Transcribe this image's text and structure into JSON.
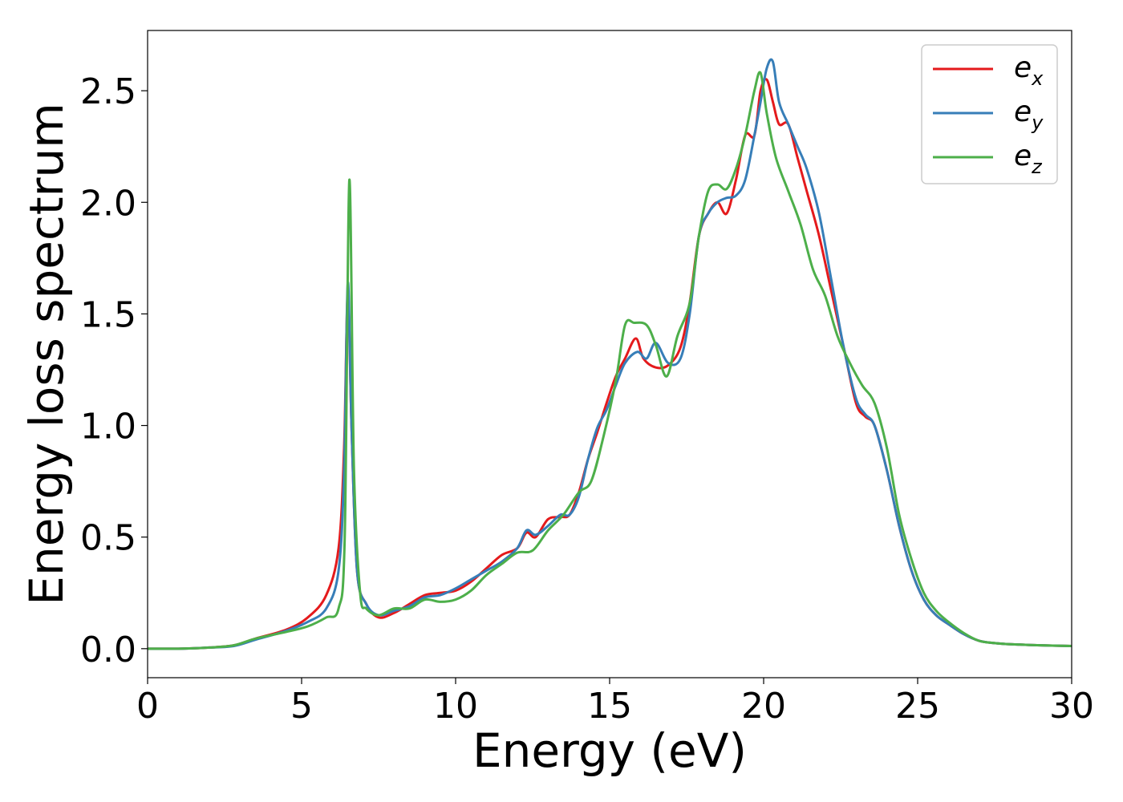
{
  "chart_data": {
    "type": "line",
    "xlabel": "Energy (eV)",
    "ylabel": "Energy loss spectrum",
    "xlim": [
      0,
      30
    ],
    "ylim": [
      -0.13,
      2.77
    ],
    "xticks": [
      0,
      5,
      10,
      15,
      20,
      25,
      30
    ],
    "yticks": [
      0.0,
      0.5,
      1.0,
      1.5,
      2.0,
      2.5
    ],
    "xtick_labels": [
      "0",
      "5",
      "10",
      "15",
      "20",
      "25",
      "30"
    ],
    "ytick_labels": [
      "0.0",
      "0.5",
      "1.0",
      "1.5",
      "2.0",
      "2.5"
    ],
    "grid": false,
    "legend_position": "top-right",
    "series": [
      {
        "name": "e_x",
        "label_main": "e",
        "label_sub": "x",
        "color": "#e41a1c",
        "x": [
          0,
          1,
          2,
          2.8,
          3.5,
          4.5,
          5.2,
          5.8,
          6.2,
          6.38,
          6.5,
          6.62,
          6.8,
          7.1,
          7.5,
          8.0,
          8.5,
          9.0,
          9.5,
          10.0,
          10.5,
          11.0,
          11.5,
          12.0,
          12.3,
          12.6,
          13.0,
          13.4,
          13.7,
          14.0,
          14.3,
          14.6,
          14.9,
          15.2,
          15.5,
          15.85,
          16.1,
          16.5,
          16.9,
          17.3,
          17.6,
          17.9,
          18.2,
          18.5,
          18.8,
          19.1,
          19.4,
          19.7,
          19.9,
          20.1,
          20.3,
          20.5,
          20.8,
          21.1,
          21.4,
          21.8,
          22.2,
          22.6,
          23.0,
          23.3,
          23.6,
          24.0,
          24.4,
          24.8,
          25.2,
          25.6,
          26.0,
          26.5,
          27.0,
          27.5,
          28.0,
          29.0,
          30.0
        ],
        "y": [
          0.0,
          0.0,
          0.005,
          0.015,
          0.045,
          0.085,
          0.14,
          0.24,
          0.45,
          0.9,
          1.6,
          1.0,
          0.35,
          0.2,
          0.14,
          0.16,
          0.2,
          0.24,
          0.25,
          0.26,
          0.3,
          0.36,
          0.42,
          0.45,
          0.52,
          0.5,
          0.58,
          0.59,
          0.6,
          0.7,
          0.85,
          0.97,
          1.1,
          1.22,
          1.3,
          1.39,
          1.3,
          1.26,
          1.27,
          1.35,
          1.55,
          1.85,
          1.95,
          2.0,
          1.95,
          2.1,
          2.3,
          2.3,
          2.5,
          2.55,
          2.45,
          2.35,
          2.35,
          2.2,
          2.05,
          1.85,
          1.6,
          1.35,
          1.1,
          1.04,
          1.0,
          0.8,
          0.55,
          0.35,
          0.22,
          0.15,
          0.11,
          0.065,
          0.035,
          0.025,
          0.02,
          0.015,
          0.012
        ]
      },
      {
        "name": "e_y",
        "label_main": "e",
        "label_sub": "y",
        "color": "#377eb8",
        "x": [
          0,
          1,
          2,
          2.8,
          3.5,
          4.5,
          5.2,
          5.8,
          6.2,
          6.38,
          6.5,
          6.62,
          6.8,
          7.1,
          7.5,
          8.0,
          8.5,
          9.0,
          9.5,
          10.0,
          10.5,
          11.0,
          11.5,
          12.0,
          12.3,
          12.6,
          13.0,
          13.4,
          13.7,
          14.0,
          14.3,
          14.6,
          14.9,
          15.2,
          15.5,
          15.9,
          16.2,
          16.5,
          16.9,
          17.3,
          17.6,
          17.9,
          18.2,
          18.5,
          18.8,
          19.1,
          19.4,
          19.7,
          19.9,
          20.1,
          20.3,
          20.5,
          20.8,
          21.1,
          21.4,
          21.8,
          22.2,
          22.6,
          23.0,
          23.3,
          23.6,
          24.0,
          24.4,
          24.8,
          25.2,
          25.6,
          26.0,
          26.5,
          27.0,
          27.5,
          28.0,
          29.0,
          30.0
        ],
        "y": [
          0.0,
          0.0,
          0.005,
          0.012,
          0.04,
          0.08,
          0.12,
          0.18,
          0.35,
          0.8,
          1.64,
          1.0,
          0.35,
          0.2,
          0.15,
          0.17,
          0.19,
          0.23,
          0.24,
          0.27,
          0.31,
          0.35,
          0.39,
          0.45,
          0.53,
          0.51,
          0.55,
          0.6,
          0.6,
          0.68,
          0.85,
          0.99,
          1.07,
          1.18,
          1.28,
          1.33,
          1.3,
          1.37,
          1.28,
          1.3,
          1.5,
          1.85,
          1.95,
          2.0,
          2.02,
          2.03,
          2.1,
          2.3,
          2.45,
          2.6,
          2.63,
          2.45,
          2.35,
          2.25,
          2.15,
          1.95,
          1.65,
          1.35,
          1.12,
          1.05,
          1.0,
          0.8,
          0.55,
          0.35,
          0.22,
          0.15,
          0.11,
          0.065,
          0.035,
          0.025,
          0.02,
          0.015,
          0.012
        ]
      },
      {
        "name": "e_z",
        "label_main": "e",
        "label_sub": "z",
        "color": "#4daf4a",
        "x": [
          0,
          1,
          2,
          2.8,
          3.5,
          4.5,
          5.2,
          5.8,
          6.2,
          6.4,
          6.55,
          6.7,
          6.9,
          7.1,
          7.5,
          8.0,
          8.5,
          9.0,
          9.5,
          10.0,
          10.5,
          11.0,
          11.5,
          12.0,
          12.5,
          13.0,
          13.5,
          14.0,
          14.4,
          14.8,
          15.2,
          15.5,
          15.8,
          16.2,
          16.5,
          16.85,
          17.2,
          17.6,
          17.9,
          18.2,
          18.5,
          18.8,
          19.1,
          19.4,
          19.7,
          19.9,
          20.1,
          20.4,
          20.8,
          21.2,
          21.6,
          22.0,
          22.4,
          22.8,
          23.2,
          23.6,
          24.0,
          24.4,
          24.8,
          25.2,
          25.6,
          26.0,
          26.5,
          27.0,
          27.5,
          28.0,
          29.0,
          30.0
        ],
        "y": [
          0.0,
          0.0,
          0.005,
          0.015,
          0.045,
          0.075,
          0.1,
          0.14,
          0.18,
          0.5,
          2.1,
          0.8,
          0.25,
          0.18,
          0.15,
          0.18,
          0.18,
          0.22,
          0.21,
          0.22,
          0.26,
          0.33,
          0.38,
          0.43,
          0.44,
          0.53,
          0.6,
          0.7,
          0.75,
          0.95,
          1.2,
          1.45,
          1.46,
          1.45,
          1.36,
          1.22,
          1.4,
          1.55,
          1.85,
          2.05,
          2.08,
          2.06,
          2.15,
          2.3,
          2.5,
          2.58,
          2.4,
          2.2,
          2.05,
          1.9,
          1.7,
          1.58,
          1.4,
          1.28,
          1.18,
          1.1,
          0.9,
          0.6,
          0.4,
          0.25,
          0.17,
          0.12,
          0.07,
          0.035,
          0.025,
          0.02,
          0.015,
          0.012
        ]
      }
    ]
  }
}
